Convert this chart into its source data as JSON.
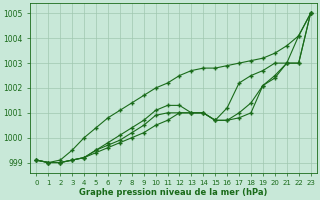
{
  "x": [
    0,
    1,
    2,
    3,
    4,
    5,
    6,
    7,
    8,
    9,
    10,
    11,
    12,
    13,
    14,
    15,
    16,
    17,
    18,
    19,
    20,
    21,
    22,
    23
  ],
  "line1": [
    999.1,
    999.0,
    999.0,
    999.1,
    999.2,
    999.4,
    999.6,
    999.8,
    1000.0,
    1000.2,
    1000.5,
    1000.7,
    1001.0,
    1001.0,
    1001.0,
    1000.7,
    1000.7,
    1000.8,
    1001.0,
    1002.1,
    1002.4,
    1003.0,
    1003.0,
    1005.0
  ],
  "line2": [
    999.1,
    999.0,
    999.0,
    999.1,
    999.2,
    999.5,
    999.7,
    999.9,
    1000.2,
    1000.5,
    1000.9,
    1001.0,
    1001.0,
    1001.0,
    1001.0,
    1000.7,
    1000.7,
    1001.0,
    1001.4,
    1002.1,
    1002.5,
    1003.0,
    1003.0,
    1005.0
  ],
  "line3": [
    999.1,
    999.0,
    999.0,
    999.1,
    999.2,
    999.5,
    999.8,
    1000.1,
    1000.4,
    1000.7,
    1001.1,
    1001.3,
    1001.3,
    1001.0,
    1001.0,
    1000.7,
    1001.2,
    1002.2,
    1002.5,
    1002.7,
    1003.0,
    1003.0,
    1004.1,
    1005.0
  ],
  "line4": [
    999.1,
    999.0,
    999.1,
    999.5,
    1000.0,
    1000.4,
    1000.8,
    1001.1,
    1001.4,
    1001.7,
    1002.0,
    1002.2,
    1002.5,
    1002.7,
    1002.8,
    1002.8,
    1002.9,
    1003.0,
    1003.1,
    1003.2,
    1003.4,
    1003.7,
    1004.1,
    1005.0
  ],
  "line_color": "#1a6b1a",
  "bg_color": "#c8e8d8",
  "grid_color": "#a0c8b0",
  "xlabel": "Graphe pression niveau de la mer (hPa)",
  "ylim": [
    998.6,
    1005.4
  ],
  "yticks": [
    999,
    1000,
    1001,
    1002,
    1003,
    1004,
    1005
  ],
  "xticks": [
    0,
    1,
    2,
    3,
    4,
    5,
    6,
    7,
    8,
    9,
    10,
    11,
    12,
    13,
    14,
    15,
    16,
    17,
    18,
    19,
    20,
    21,
    22,
    23
  ]
}
